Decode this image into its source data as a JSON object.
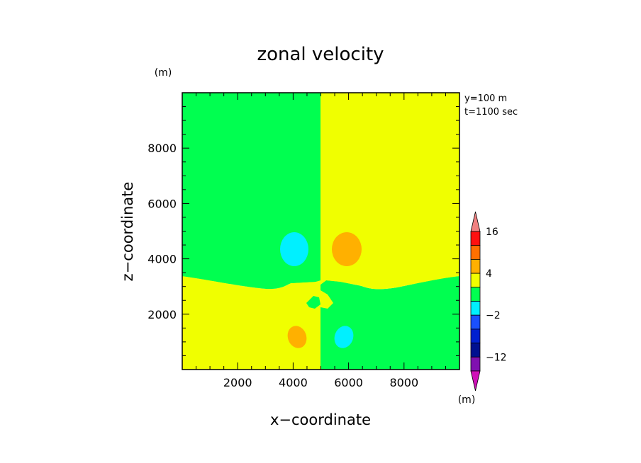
{
  "chart_data": {
    "type": "heatmap",
    "title": "zonal velocity",
    "xlabel": "x−coordinate",
    "ylabel": "z−coordinate",
    "x_unit": "(m)",
    "y_unit": "(m)",
    "colorbar_unit": "(m)",
    "annotations": [
      "y=100 m",
      "t=1100 sec"
    ],
    "xlim": [
      0,
      10000
    ],
    "ylim": [
      0,
      10000
    ],
    "xticks": [
      2000,
      4000,
      6000,
      8000
    ],
    "yticks": [
      2000,
      4000,
      6000,
      8000
    ],
    "xtick_labels": [
      "2000",
      "4000",
      "6000",
      "8000"
    ],
    "ytick_labels": [
      "2000",
      "4000",
      "6000",
      "8000"
    ],
    "colorbar": {
      "levels": [
        -16,
        -12,
        -8,
        -4,
        -2,
        0,
        2,
        4,
        8,
        12,
        16
      ],
      "colors": [
        "#d010b8",
        "#8010b0",
        "#001090",
        "#0020d0",
        "#1a50ff",
        "#00f0ff",
        "#00ff50",
        "#f0ff00",
        "#ffb000",
        "#ff7000",
        "#ff1010",
        "#f08080"
      ],
      "extend": "both",
      "labels": [
        {
          "value": 16,
          "text": "16"
        },
        {
          "value": 4,
          "text": "4"
        },
        {
          "value": -2,
          "text": "−2"
        },
        {
          "value": -12,
          "text": "−12"
        }
      ]
    },
    "regions": [
      {
        "name": "upper-left",
        "color": "#00ff50"
      },
      {
        "name": "upper-right",
        "color": "#f0ff00"
      },
      {
        "name": "lower-left",
        "color": "#f0ff00"
      },
      {
        "name": "lower-right",
        "color": "#00ff50"
      },
      {
        "name": "blob-cyan-upper",
        "color": "#00f0ff",
        "cx": 4000,
        "cy": 4400,
        "rx": 500,
        "ry": 600
      },
      {
        "name": "blob-orange-upper",
        "color": "#ffb000",
        "cx": 6000,
        "cy": 4400,
        "rx": 550,
        "ry": 600
      },
      {
        "name": "blob-orange-lower",
        "color": "#ffb000",
        "cx": 4100,
        "cy": 1150,
        "rx": 350,
        "ry": 420
      },
      {
        "name": "blob-cyan-lower",
        "color": "#00f0ff",
        "cx": 5700,
        "cy": 1150,
        "rx": 320,
        "ry": 420
      }
    ]
  }
}
